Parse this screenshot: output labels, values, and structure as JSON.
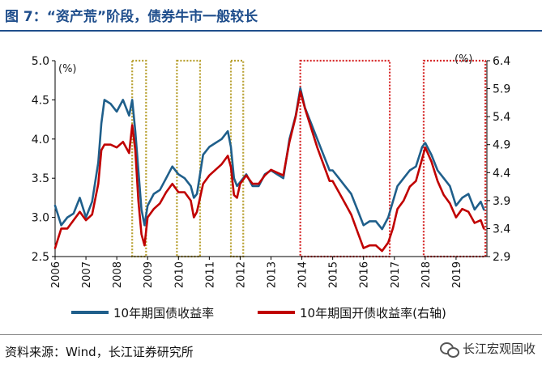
{
  "title": "图 7：“资产荒”阶段，债券牛市一般较长",
  "source": "资料来源：Wind，长江证券研究所",
  "watermark": "长江宏观固收",
  "chart_data": {
    "type": "line",
    "title": "图 7：“资产荒”阶段，债券牛市一般较长",
    "yunit_left": "(%)",
    "yunit_right": "(%)",
    "ylim_left": [
      2.5,
      5.0
    ],
    "ylim_right": [
      2.9,
      6.4
    ],
    "yticks_left": [
      "2.5",
      "3.0",
      "3.5",
      "4.0",
      "4.5",
      "5.0"
    ],
    "yticks_right": [
      "2.9",
      "3.4",
      "3.9",
      "4.4",
      "4.9",
      "5.4",
      "5.9",
      "6.4"
    ],
    "xlim": [
      2006,
      2020
    ],
    "xticks": [
      "2006",
      "2007",
      "2008",
      "2009",
      "2010",
      "2011",
      "2012",
      "2013",
      "2014",
      "2015",
      "2016",
      "2017",
      "2018",
      "2019"
    ],
    "series": [
      {
        "name": "10年期国债收益率",
        "axis": "left",
        "color": "#1f5f8b",
        "x": [
          2006.0,
          2006.2,
          2006.4,
          2006.6,
          2006.8,
          2007.0,
          2007.2,
          2007.4,
          2007.5,
          2007.6,
          2007.8,
          2008.0,
          2008.2,
          2008.4,
          2008.5,
          2008.6,
          2008.7,
          2008.8,
          2008.9,
          2009.0,
          2009.2,
          2009.4,
          2009.6,
          2009.8,
          2010.0,
          2010.2,
          2010.4,
          2010.5,
          2010.6,
          2010.8,
          2011.0,
          2011.2,
          2011.4,
          2011.6,
          2011.7,
          2011.8,
          2011.9,
          2012.0,
          2012.2,
          2012.4,
          2012.6,
          2012.8,
          2013.0,
          2013.2,
          2013.4,
          2013.6,
          2013.8,
          2013.95,
          2014.1,
          2014.3,
          2014.5,
          2014.7,
          2014.9,
          2015.0,
          2015.2,
          2015.4,
          2015.6,
          2015.8,
          2016.0,
          2016.2,
          2016.4,
          2016.6,
          2016.8,
          2016.95,
          2017.1,
          2017.3,
          2017.5,
          2017.7,
          2017.9,
          2018.0,
          2018.2,
          2018.4,
          2018.6,
          2018.8,
          2019.0,
          2019.2,
          2019.4,
          2019.6,
          2019.8,
          2019.9
        ],
        "values": [
          3.15,
          2.9,
          3.0,
          3.05,
          3.25,
          3.0,
          3.2,
          3.7,
          4.2,
          4.5,
          4.45,
          4.35,
          4.5,
          4.3,
          4.5,
          4.1,
          3.6,
          3.1,
          2.9,
          3.15,
          3.3,
          3.35,
          3.5,
          3.65,
          3.55,
          3.5,
          3.4,
          3.25,
          3.3,
          3.8,
          3.9,
          3.95,
          4.0,
          4.1,
          3.9,
          3.5,
          3.4,
          3.45,
          3.55,
          3.4,
          3.4,
          3.55,
          3.6,
          3.55,
          3.5,
          4.0,
          4.3,
          4.65,
          4.4,
          4.2,
          4.0,
          3.8,
          3.6,
          3.6,
          3.5,
          3.4,
          3.3,
          3.1,
          2.9,
          2.95,
          2.95,
          2.85,
          3.0,
          3.2,
          3.4,
          3.5,
          3.6,
          3.65,
          3.9,
          3.95,
          3.8,
          3.6,
          3.5,
          3.4,
          3.15,
          3.25,
          3.3,
          3.1,
          3.2,
          3.1
        ]
      },
      {
        "name": "10年期国开债收益率(右轴)",
        "axis": "right",
        "color": "#c00000",
        "x": [
          2006.0,
          2006.2,
          2006.4,
          2006.6,
          2006.8,
          2007.0,
          2007.2,
          2007.4,
          2007.5,
          2007.6,
          2007.8,
          2008.0,
          2008.2,
          2008.4,
          2008.5,
          2008.6,
          2008.7,
          2008.8,
          2008.9,
          2009.0,
          2009.2,
          2009.4,
          2009.6,
          2009.8,
          2010.0,
          2010.2,
          2010.4,
          2010.5,
          2010.6,
          2010.8,
          2011.0,
          2011.2,
          2011.4,
          2011.6,
          2011.7,
          2011.8,
          2011.9,
          2012.0,
          2012.2,
          2012.4,
          2012.6,
          2012.8,
          2013.0,
          2013.2,
          2013.4,
          2013.6,
          2013.8,
          2013.95,
          2014.1,
          2014.3,
          2014.5,
          2014.7,
          2014.9,
          2015.0,
          2015.2,
          2015.4,
          2015.6,
          2015.8,
          2016.0,
          2016.2,
          2016.4,
          2016.6,
          2016.8,
          2016.95,
          2017.1,
          2017.3,
          2017.5,
          2017.7,
          2017.9,
          2018.0,
          2018.2,
          2018.4,
          2018.6,
          2018.8,
          2019.0,
          2019.2,
          2019.4,
          2019.6,
          2019.8,
          2019.9
        ],
        "values": [
          3.05,
          3.4,
          3.4,
          3.55,
          3.7,
          3.55,
          3.65,
          4.2,
          4.8,
          4.9,
          4.9,
          4.85,
          4.95,
          4.75,
          5.25,
          4.8,
          3.9,
          3.3,
          3.1,
          3.6,
          3.75,
          3.85,
          4.05,
          4.2,
          4.05,
          4.05,
          3.9,
          3.6,
          3.7,
          4.2,
          4.35,
          4.45,
          4.55,
          4.7,
          4.5,
          4.0,
          3.95,
          4.2,
          4.35,
          4.2,
          4.2,
          4.35,
          4.45,
          4.4,
          4.35,
          4.95,
          5.4,
          5.85,
          5.55,
          5.2,
          4.85,
          4.55,
          4.25,
          4.25,
          4.05,
          3.85,
          3.65,
          3.35,
          3.05,
          3.1,
          3.1,
          3.0,
          3.15,
          3.4,
          3.75,
          3.9,
          4.15,
          4.25,
          4.65,
          4.85,
          4.6,
          4.25,
          4.0,
          3.85,
          3.6,
          3.75,
          3.7,
          3.5,
          3.55,
          3.4
        ]
      }
    ],
    "highlight_periods": [
      {
        "start": 2008.5,
        "end": 2008.95,
        "color": "#b8a030"
      },
      {
        "start": 2009.95,
        "end": 2010.7,
        "color": "#b8a030"
      },
      {
        "start": 2011.7,
        "end": 2012.1,
        "color": "#b8a030"
      },
      {
        "start": 2013.95,
        "end": 2016.85,
        "color": "#d62828"
      },
      {
        "start": 2017.95,
        "end": 2019.95,
        "color": "#d62828"
      }
    ],
    "legend": [
      "10年期国债收益率",
      "10年期国开债收益率(右轴)"
    ],
    "legend_position": "bottom"
  }
}
